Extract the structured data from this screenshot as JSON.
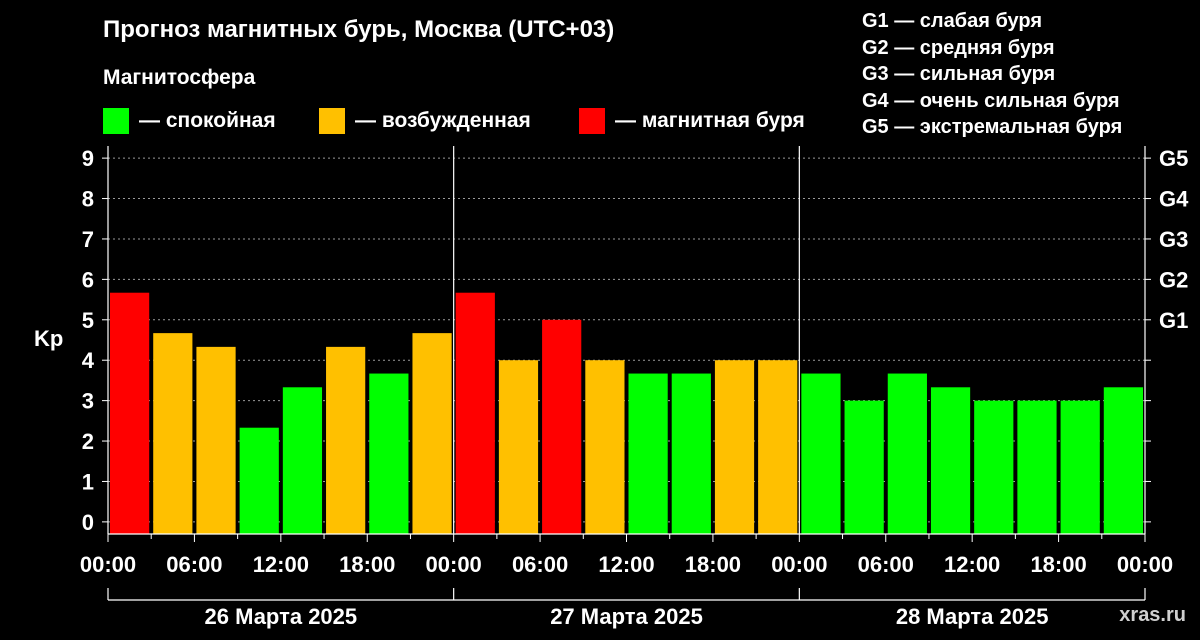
{
  "title": "Прогноз магнитных бурь, Москва (UTC+03)",
  "legend": {
    "heading": "Магнитосфера",
    "items": [
      {
        "label": "— спокойная",
        "color": "#00ff00"
      },
      {
        "label": "— возбужденная",
        "color": "#ffc000"
      },
      {
        "label": "— магнитная буря",
        "color": "#ff0000"
      }
    ]
  },
  "g_legend": [
    "G1 — слабая буря",
    "G2 — средняя буря",
    "G3 — сильная буря",
    "G4 — очень сильная буря",
    "G5 — экстремальная буря"
  ],
  "watermark": "xras.ru",
  "chart_data": {
    "type": "bar",
    "ylabel": "Kp",
    "ylim": [
      -0.3,
      9.3
    ],
    "y_ticks": [
      0,
      1,
      2,
      3,
      4,
      5,
      6,
      7,
      8,
      9
    ],
    "g_ticks": [
      {
        "kp": 5,
        "label": "G1"
      },
      {
        "kp": 6,
        "label": "G2"
      },
      {
        "kp": 7,
        "label": "G3"
      },
      {
        "kp": 8,
        "label": "G4"
      },
      {
        "kp": 9,
        "label": "G5"
      }
    ],
    "x_tick_labels": [
      "00:00",
      "06:00",
      "12:00",
      "18:00",
      "00:00",
      "06:00",
      "12:00",
      "18:00",
      "00:00",
      "06:00",
      "12:00",
      "18:00",
      "00:00"
    ],
    "days": [
      "26 Марта 2025",
      "27 Марта 2025",
      "28 Марта 2025"
    ],
    "interval_hours": 3,
    "values": [
      5.67,
      4.67,
      4.33,
      2.33,
      3.33,
      4.33,
      3.67,
      4.67,
      5.67,
      4.0,
      5.0,
      4.0,
      3.67,
      3.67,
      4.0,
      4.0,
      3.67,
      3.0,
      3.67,
      3.33,
      3.0,
      3.0,
      3.0,
      3.33
    ],
    "colors": [
      "#ff0000",
      "#ffc000",
      "#ffc000",
      "#00ff00",
      "#00ff00",
      "#ffc000",
      "#00ff00",
      "#ffc000",
      "#ff0000",
      "#ffc000",
      "#ff0000",
      "#ffc000",
      "#00ff00",
      "#00ff00",
      "#ffc000",
      "#ffc000",
      "#00ff00",
      "#00ff00",
      "#00ff00",
      "#00ff00",
      "#00ff00",
      "#00ff00",
      "#00ff00",
      "#00ff00"
    ],
    "grid": true
  }
}
